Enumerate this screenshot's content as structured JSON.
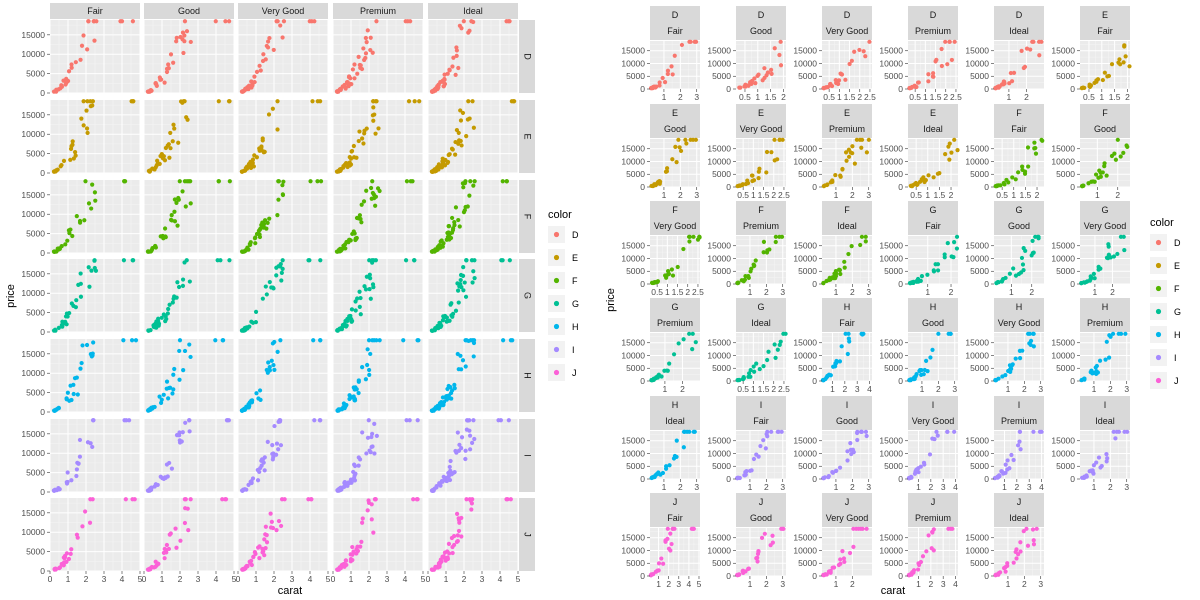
{
  "chart_data": [
    {
      "type": "scatter",
      "layout": "facet_grid",
      "xlabel": "carat",
      "ylabel": "price",
      "xlim": [
        0,
        5
      ],
      "ylim": [
        0,
        18823
      ],
      "x_ticks": [
        0,
        1,
        2,
        3,
        4,
        5
      ],
      "y_ticks": [
        0,
        5000,
        10000,
        15000
      ],
      "col_facet": "cut",
      "row_facet": "color",
      "columns": [
        "Fair",
        "Good",
        "Very Good",
        "Premium",
        "Ideal"
      ],
      "rows": [
        "D",
        "E",
        "F",
        "G",
        "H",
        "I",
        "J"
      ],
      "legend": {
        "title": "color",
        "position": "right",
        "entries": [
          {
            "label": "D",
            "color": "#F8766D"
          },
          {
            "label": "E",
            "color": "#C49A00"
          },
          {
            "label": "F",
            "color": "#53B400"
          },
          {
            "label": "G",
            "color": "#00C094"
          },
          {
            "label": "H",
            "color": "#00B6EB"
          },
          {
            "label": "I",
            "color": "#A58AFF"
          },
          {
            "label": "J",
            "color": "#FB61D7"
          }
        ]
      }
    },
    {
      "type": "scatter",
      "layout": "facet_wrap",
      "ncol": 6,
      "xlabel": "carat",
      "ylabel": "price",
      "y_ticks": [
        0,
        5000,
        10000,
        15000
      ],
      "panels": [
        {
          "color": "D",
          "cut": "Fair",
          "xlim": [
            0.15,
            3.2
          ],
          "x_ticks": [
            1,
            2,
            3
          ]
        },
        {
          "color": "D",
          "cut": "Good",
          "xlim": [
            0.15,
            2.1
          ],
          "x_ticks": [
            0.5,
            1.0,
            1.5,
            2.0
          ]
        },
        {
          "color": "D",
          "cut": "Very Good",
          "xlim": [
            0.15,
            2.6
          ],
          "x_ticks": [
            0.5,
            1.0,
            1.5,
            2.0,
            2.5
          ]
        },
        {
          "color": "D",
          "cut": "Premium",
          "xlim": [
            0.15,
            2.6
          ],
          "x_ticks": [
            0.5,
            1.0,
            1.5,
            2.0,
            2.5
          ]
        },
        {
          "color": "D",
          "cut": "Ideal",
          "xlim": [
            0.15,
            3.0
          ],
          "x_ticks": [
            1,
            2
          ]
        },
        {
          "color": "E",
          "cut": "Fair",
          "xlim": [
            0.15,
            2.1
          ],
          "x_ticks": [
            0.5,
            1.0,
            1.5,
            2.0
          ]
        },
        {
          "color": "E",
          "cut": "Good",
          "xlim": [
            0.15,
            3.2
          ],
          "x_ticks": [
            1,
            2,
            3
          ]
        },
        {
          "color": "E",
          "cut": "Very Good",
          "xlim": [
            0.15,
            2.6
          ],
          "x_ticks": [
            0.5,
            1.0,
            1.5,
            2.0,
            2.5
          ]
        },
        {
          "color": "E",
          "cut": "Premium",
          "xlim": [
            0.15,
            3.2
          ],
          "x_ticks": [
            1,
            2,
            3
          ]
        },
        {
          "color": "E",
          "cut": "Ideal",
          "xlim": [
            0.15,
            2.3
          ],
          "x_ticks": [
            0.5,
            1.0,
            1.5,
            2.0
          ]
        },
        {
          "color": "F",
          "cut": "Fair",
          "xlim": [
            0.15,
            2.3
          ],
          "x_ticks": [
            0.5,
            1.0,
            1.5,
            2.0
          ]
        },
        {
          "color": "F",
          "cut": "Good",
          "xlim": [
            0.15,
            2.6
          ],
          "x_ticks": [
            1,
            2
          ]
        },
        {
          "color": "F",
          "cut": "Very Good",
          "xlim": [
            0.15,
            2.6
          ],
          "x_ticks": [
            0.5,
            1.0,
            1.5,
            2.0,
            2.5
          ]
        },
        {
          "color": "F",
          "cut": "Premium",
          "xlim": [
            0.15,
            3.2
          ],
          "x_ticks": [
            1,
            2,
            3
          ]
        },
        {
          "color": "F",
          "cut": "Ideal",
          "xlim": [
            0.15,
            3.2
          ],
          "x_ticks": [
            1,
            2,
            3
          ]
        },
        {
          "color": "G",
          "cut": "Fair",
          "xlim": [
            0.15,
            2.3
          ],
          "x_ticks": [
            1,
            2
          ]
        },
        {
          "color": "G",
          "cut": "Good",
          "xlim": [
            0.15,
            2.6
          ],
          "x_ticks": [
            1,
            2
          ]
        },
        {
          "color": "G",
          "cut": "Very Good",
          "xlim": [
            0.15,
            3.0
          ],
          "x_ticks": [
            1,
            2
          ]
        },
        {
          "color": "G",
          "cut": "Premium",
          "xlim": [
            0.15,
            3.0
          ],
          "x_ticks": [
            1,
            2
          ]
        },
        {
          "color": "G",
          "cut": "Ideal",
          "xlim": [
            0.15,
            2.6
          ],
          "x_ticks": [
            0.5,
            1.0,
            1.5,
            2.0,
            2.5
          ]
        },
        {
          "color": "H",
          "cut": "Fair",
          "xlim": [
            0.15,
            4.2
          ],
          "x_ticks": [
            1,
            2,
            3,
            4
          ]
        },
        {
          "color": "H",
          "cut": "Good",
          "xlim": [
            0.15,
            3.2
          ],
          "x_ticks": [
            1,
            2,
            3
          ]
        },
        {
          "color": "H",
          "cut": "Very Good",
          "xlim": [
            0.15,
            3.2
          ],
          "x_ticks": [
            1,
            2,
            3
          ]
        },
        {
          "color": "H",
          "cut": "Premium",
          "xlim": [
            0.15,
            3.2
          ],
          "x_ticks": [
            1,
            2,
            3
          ]
        },
        {
          "color": "H",
          "cut": "Ideal",
          "xlim": [
            0.15,
            3.2
          ],
          "x_ticks": [
            1,
            2,
            3
          ]
        },
        {
          "color": "I",
          "cut": "Fair",
          "xlim": [
            0.15,
            3.2
          ],
          "x_ticks": [
            1,
            2,
            3
          ]
        },
        {
          "color": "I",
          "cut": "Good",
          "xlim": [
            0.15,
            3.2
          ],
          "x_ticks": [
            1,
            2,
            3
          ]
        },
        {
          "color": "I",
          "cut": "Very Good",
          "xlim": [
            0.15,
            4.2
          ],
          "x_ticks": [
            1,
            2,
            3,
            4
          ]
        },
        {
          "color": "I",
          "cut": "Premium",
          "xlim": [
            0.15,
            4.2
          ],
          "x_ticks": [
            1,
            2,
            3,
            4
          ]
        },
        {
          "color": "I",
          "cut": "Ideal",
          "xlim": [
            0.15,
            3.2
          ],
          "x_ticks": [
            1,
            2,
            3
          ]
        },
        {
          "color": "J",
          "cut": "Fair",
          "xlim": [
            0.15,
            5.1
          ],
          "x_ticks": [
            1,
            2,
            3,
            4,
            5
          ]
        },
        {
          "color": "J",
          "cut": "Good",
          "xlim": [
            0.15,
            3.2
          ],
          "x_ticks": [
            1,
            2,
            3
          ]
        },
        {
          "color": "J",
          "cut": "Very Good",
          "xlim": [
            0.15,
            3.2
          ],
          "x_ticks": [
            1,
            2
          ]
        },
        {
          "color": "J",
          "cut": "Premium",
          "xlim": [
            0.15,
            4.2
          ],
          "x_ticks": [
            1,
            2,
            3,
            4
          ]
        },
        {
          "color": "J",
          "cut": "Ideal",
          "xlim": [
            0.15,
            3.2
          ],
          "x_ticks": [
            1,
            2,
            3
          ]
        }
      ],
      "legend": {
        "title": "color",
        "position": "right",
        "entries": [
          {
            "label": "D",
            "color": "#F8766D"
          },
          {
            "label": "E",
            "color": "#C49A00"
          },
          {
            "label": "F",
            "color": "#53B400"
          },
          {
            "label": "G",
            "color": "#00C094"
          },
          {
            "label": "H",
            "color": "#00B6EB"
          },
          {
            "label": "I",
            "color": "#A58AFF"
          },
          {
            "label": "J",
            "color": "#FB61D7"
          }
        ]
      }
    }
  ]
}
